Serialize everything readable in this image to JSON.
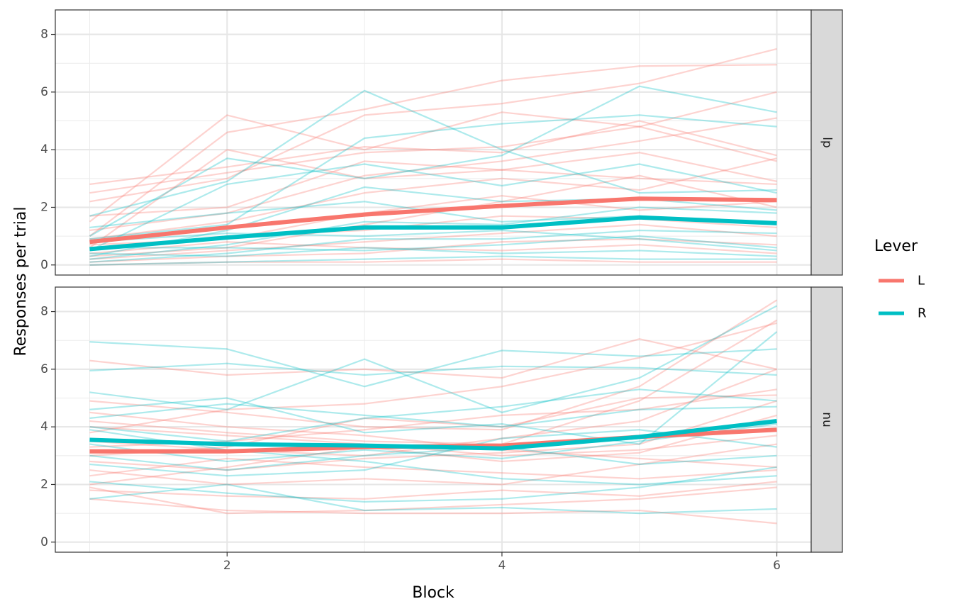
{
  "chart_data": {
    "type": "line",
    "xlabel": "Block",
    "ylabel": "Responses per trial",
    "x_ticks": [
      2,
      4,
      6
    ],
    "y_ticks": [
      0,
      2,
      4,
      6,
      8
    ],
    "xlim": [
      0.75,
      6.25
    ],
    "ylim": [
      -0.35,
      8.85
    ],
    "grid": true,
    "legend": {
      "title": "Lever",
      "position": "right",
      "entries": [
        {
          "label": "L",
          "color": "#F8766D"
        },
        {
          "label": "R",
          "color": "#00BFC4"
        }
      ]
    },
    "x": [
      1,
      2,
      3,
      4,
      5,
      6
    ],
    "panels": [
      {
        "strip": "lp",
        "series": [
          {
            "name": "L",
            "color": "#F8766D",
            "values": [
              0.8,
              1.3,
              1.75,
              2.05,
              2.3,
              2.25
            ]
          },
          {
            "name": "R",
            "color": "#00BFC4",
            "values": [
              0.55,
              0.95,
              1.3,
              1.3,
              1.65,
              1.45
            ]
          }
        ],
        "individual": [
          {
            "lever": "L",
            "values": [
              2.8,
              3.4,
              4.1,
              3.9,
              5.0,
              3.8
            ]
          },
          {
            "lever": "L",
            "values": [
              2.2,
              3.0,
              5.2,
              5.6,
              6.3,
              7.5
            ]
          },
          {
            "lever": "L",
            "values": [
              1.5,
              5.2,
              4.0,
              5.3,
              4.8,
              6.0
            ]
          },
          {
            "lever": "L",
            "values": [
              1.0,
              4.6,
              5.4,
              6.4,
              6.9,
              6.95
            ]
          },
          {
            "lever": "L",
            "values": [
              0.6,
              4.0,
              3.0,
              3.3,
              3.0,
              2.8
            ]
          },
          {
            "lever": "L",
            "values": [
              2.5,
              3.2,
              3.9,
              4.1,
              4.8,
              3.6
            ]
          },
          {
            "lever": "L",
            "values": [
              1.2,
              1.8,
              3.1,
              3.6,
              4.3,
              5.1
            ]
          },
          {
            "lever": "L",
            "values": [
              0.3,
              0.6,
              1.4,
              2.2,
              3.1,
              2.0
            ]
          },
          {
            "lever": "L",
            "values": [
              0.5,
              1.0,
              1.2,
              1.7,
              1.6,
              1.3
            ]
          },
          {
            "lever": "L",
            "values": [
              0.2,
              0.5,
              0.8,
              1.1,
              1.4,
              1.0
            ]
          },
          {
            "lever": "L",
            "values": [
              0.1,
              0.3,
              0.4,
              0.8,
              0.9,
              0.7
            ]
          },
          {
            "lever": "L",
            "values": [
              0.9,
              1.5,
              2.5,
              3.0,
              2.6,
              3.7
            ]
          },
          {
            "lever": "L",
            "values": [
              0.4,
              0.8,
              0.6,
              0.5,
              0.7,
              0.4
            ]
          },
          {
            "lever": "L",
            "values": [
              0.0,
              0.1,
              0.1,
              0.2,
              0.1,
              0.1
            ]
          },
          {
            "lever": "L",
            "values": [
              1.7,
              2.0,
              3.6,
              3.3,
              3.9,
              2.9
            ]
          },
          {
            "lever": "L",
            "values": [
              0.7,
              0.9,
              1.8,
              2.4,
              1.9,
              2.2
            ]
          },
          {
            "lever": "R",
            "values": [
              1.7,
              2.9,
              6.05,
              4.0,
              2.5,
              2.6
            ]
          },
          {
            "lever": "R",
            "values": [
              1.0,
              3.7,
              3.0,
              3.8,
              6.2,
              5.3
            ]
          },
          {
            "lever": "R",
            "values": [
              0.9,
              1.4,
              4.4,
              4.9,
              5.2,
              4.8
            ]
          },
          {
            "lever": "R",
            "values": [
              0.5,
              2.8,
              3.5,
              2.75,
              3.5,
              2.5
            ]
          },
          {
            "lever": "R",
            "values": [
              0.3,
              1.2,
              2.7,
              2.2,
              2.3,
              1.9
            ]
          },
          {
            "lever": "R",
            "values": [
              0.2,
              0.7,
              1.5,
              1.4,
              2.0,
              1.8
            ]
          },
          {
            "lever": "R",
            "values": [
              0.1,
              0.4,
              0.9,
              0.9,
              1.2,
              1.1
            ]
          },
          {
            "lever": "R",
            "values": [
              0.6,
              0.6,
              0.5,
              0.7,
              1.0,
              0.6
            ]
          },
          {
            "lever": "R",
            "values": [
              0.0,
              0.1,
              0.2,
              0.3,
              0.2,
              0.2
            ]
          },
          {
            "lever": "R",
            "values": [
              1.3,
              1.8,
              2.2,
              1.5,
              1.7,
              1.4
            ]
          },
          {
            "lever": "R",
            "values": [
              0.8,
              1.1,
              1.0,
              1.2,
              0.9,
              0.5
            ]
          },
          {
            "lever": "R",
            "values": [
              0.4,
              0.3,
              0.6,
              0.4,
              0.5,
              0.3
            ]
          }
        ]
      },
      {
        "strip": "nu",
        "series": [
          {
            "name": "L",
            "color": "#F8766D",
            "values": [
              3.15,
              3.15,
              3.3,
              3.35,
              3.65,
              3.9
            ]
          },
          {
            "name": "R",
            "color": "#00BFC4",
            "values": [
              3.55,
              3.4,
              3.35,
              3.25,
              3.65,
              4.2
            ]
          }
        ],
        "individual": [
          {
            "lever": "L",
            "values": [
              6.3,
              5.8,
              6.0,
              5.7,
              7.05,
              6.0
            ]
          },
          {
            "lever": "L",
            "values": [
              4.9,
              4.5,
              4.0,
              3.9,
              5.4,
              8.4
            ]
          },
          {
            "lever": "L",
            "values": [
              4.2,
              3.8,
              3.5,
              3.4,
              4.9,
              7.7
            ]
          },
          {
            "lever": "L",
            "values": [
              3.5,
              3.2,
              3.0,
              3.6,
              4.2,
              6.0
            ]
          },
          {
            "lever": "L",
            "values": [
              2.8,
              2.5,
              2.9,
              3.1,
              3.4,
              4.9
            ]
          },
          {
            "lever": "L",
            "values": [
              2.0,
              2.6,
              3.3,
              2.8,
              3.1,
              4.4
            ]
          },
          {
            "lever": "L",
            "values": [
              1.5,
              1.1,
              1.0,
              1.0,
              1.1,
              0.65
            ]
          },
          {
            "lever": "L",
            "values": [
              1.8,
              1.6,
              1.5,
              1.8,
              1.6,
              2.1
            ]
          },
          {
            "lever": "L",
            "values": [
              2.5,
              2.0,
              2.2,
              2.0,
              2.7,
              3.4
            ]
          },
          {
            "lever": "L",
            "values": [
              3.8,
              4.6,
              4.8,
              5.4,
              6.4,
              7.6
            ]
          },
          {
            "lever": "L",
            "values": [
              3.0,
              3.3,
              4.3,
              4.0,
              5.0,
              5.1
            ]
          },
          {
            "lever": "L",
            "values": [
              4.5,
              4.0,
              3.7,
              3.2,
              2.9,
              2.6
            ]
          },
          {
            "lever": "L",
            "values": [
              2.3,
              2.9,
              2.6,
              2.4,
              2.2,
              2.5
            ]
          },
          {
            "lever": "L",
            "values": [
              3.3,
              3.5,
              3.9,
              4.4,
              4.6,
              5.3
            ]
          },
          {
            "lever": "L",
            "values": [
              1.9,
              1.0,
              1.1,
              1.3,
              1.5,
              1.9
            ]
          },
          {
            "lever": "L",
            "values": [
              4.0,
              3.7,
              3.4,
              3.0,
              3.2,
              3.7
            ]
          },
          {
            "lever": "R",
            "values": [
              6.95,
              6.7,
              5.4,
              6.65,
              6.45,
              6.7
            ]
          },
          {
            "lever": "R",
            "values": [
              5.95,
              6.2,
              5.8,
              6.1,
              6.05,
              5.8
            ]
          },
          {
            "lever": "R",
            "values": [
              5.2,
              4.6,
              6.35,
              4.5,
              5.7,
              8.2
            ]
          },
          {
            "lever": "R",
            "values": [
              4.6,
              5.0,
              3.8,
              4.1,
              3.4,
              7.3
            ]
          },
          {
            "lever": "R",
            "values": [
              4.0,
              3.5,
              4.3,
              4.7,
              5.3,
              4.9
            ]
          },
          {
            "lever": "R",
            "values": [
              3.4,
              2.8,
              3.2,
              2.9,
              3.5,
              4.1
            ]
          },
          {
            "lever": "R",
            "values": [
              2.7,
              2.3,
              2.5,
              3.6,
              3.9,
              3.3
            ]
          },
          {
            "lever": "R",
            "values": [
              2.1,
              1.7,
              1.4,
              1.5,
              1.9,
              2.6
            ]
          },
          {
            "lever": "R",
            "values": [
              1.5,
              2.0,
              1.1,
              1.2,
              1.0,
              1.15
            ]
          },
          {
            "lever": "R",
            "values": [
              3.9,
              3.2,
              2.8,
              2.2,
              2.0,
              2.3
            ]
          },
          {
            "lever": "R",
            "values": [
              4.3,
              4.8,
              4.4,
              4.0,
              4.6,
              4.7
            ]
          },
          {
            "lever": "R",
            "values": [
              3.0,
              2.5,
              3.0,
              3.3,
              2.7,
              3.0
            ]
          }
        ]
      }
    ]
  }
}
